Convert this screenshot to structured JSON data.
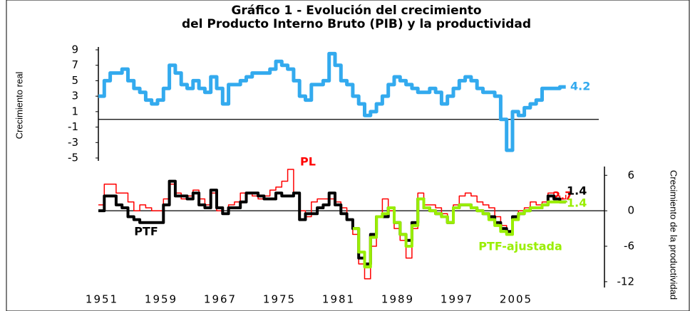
{
  "chart_data": [
    {
      "type": "line",
      "title": [
        "Gráfico 1 - Evolución del crecimiento",
        "del Producto Interno Bruto (PIB) y la productividad"
      ],
      "ylabel": "Crecimiento real",
      "ylim": [
        -5,
        9
      ],
      "yticks": [
        9,
        7,
        5,
        3,
        1,
        -1,
        -3,
        -5
      ],
      "series": [
        {
          "name": null,
          "color": "#33aaee",
          "values": [
            3,
            5,
            6,
            6,
            6.5,
            5,
            4,
            3.5,
            2.5,
            2,
            2.5,
            4,
            7,
            6,
            4.5,
            4,
            5,
            4,
            3.5,
            5.5,
            4,
            2,
            4.5,
            4.5,
            5,
            5.5,
            6,
            6,
            6,
            6.5,
            7.5,
            7,
            6.5,
            5,
            3,
            2.5,
            4.5,
            4.5,
            5,
            8.5,
            7,
            5,
            4.5,
            3,
            2,
            0.5,
            1,
            2,
            3,
            4.5,
            5.5,
            5,
            4.5,
            4,
            3.5,
            3.5,
            4,
            3.5,
            2,
            3,
            4,
            5,
            5.5,
            5,
            4,
            3.5,
            3.5,
            3,
            0,
            -4,
            1,
            0.5,
            1.5,
            2,
            2.5,
            4,
            4,
            4,
            4.2,
            4.2
          ]
        }
      ]
    },
    {
      "type": "line",
      "ylabel": "Crecimiento de la productividad",
      "ylim": [
        -12.5,
        7
      ],
      "yticks": [
        6,
        0,
        -6,
        -12
      ],
      "categories": [
        "1951",
        null,
        null,
        null,
        null,
        null,
        null,
        null,
        null,
        null,
        "1959",
        null,
        null,
        null,
        null,
        null,
        null,
        null,
        null,
        null,
        "1967",
        null,
        null,
        null,
        null,
        null,
        null,
        null,
        null,
        null,
        "1975",
        null,
        null,
        null,
        null,
        null,
        null,
        null,
        null,
        null,
        "1981",
        null,
        null,
        null,
        null,
        null,
        null,
        null,
        null,
        null,
        "1989",
        null,
        null,
        null,
        null,
        null,
        null,
        null,
        null,
        null,
        "1997",
        null,
        null,
        null,
        null,
        null,
        null,
        null,
        null,
        null,
        "2005",
        null,
        null,
        null,
        null,
        null,
        null,
        null,
        null,
        null
      ],
      "series": [
        {
          "name": "PL",
          "color": "#ff0000",
          "values": [
            1,
            4.5,
            4.5,
            3,
            3,
            1.5,
            0,
            1,
            0.5,
            0,
            0,
            2,
            4.5,
            3,
            2,
            2.5,
            3.5,
            2,
            1,
            3,
            0,
            -0.5,
            1,
            1.5,
            3,
            3,
            2.5,
            2,
            2.5,
            3.5,
            4,
            5,
            7,
            3,
            0,
            -1,
            1.5,
            2,
            2,
            2,
            1.5,
            0.5,
            -1.5,
            -4,
            -9,
            -11.5,
            -6,
            -1,
            2,
            0,
            -3,
            -5,
            -8,
            -3,
            3,
            1,
            1,
            0.5,
            -0.5,
            -2,
            1,
            2.5,
            3,
            2.5,
            1.5,
            1,
            0.5,
            -1,
            -2.5,
            -4,
            -1.5,
            0,
            0.5,
            1.5,
            1,
            1.5,
            3,
            2.5,
            2,
            2.7
          ]
        },
        {
          "name": "PTF",
          "color": "#000000",
          "values": [
            0,
            2.5,
            2.5,
            1,
            0.5,
            -1,
            -1.5,
            -2,
            -2,
            -2,
            -2,
            1,
            5,
            2.5,
            2.5,
            2,
            3,
            1,
            0.5,
            3.5,
            0.5,
            -0.5,
            0.5,
            0.5,
            1.5,
            3,
            3,
            2.5,
            2,
            2,
            3,
            2.5,
            2.5,
            3,
            -1.5,
            -0.5,
            -0.5,
            0.5,
            1,
            3,
            1,
            -0.5,
            -1.5,
            -3,
            -8,
            -9,
            -4,
            -1,
            -1,
            0.5,
            -2,
            -4,
            -5,
            -2,
            2,
            0.5,
            0,
            -0.5,
            -1,
            -2,
            0.5,
            1,
            1,
            0.5,
            0,
            -0.5,
            -1,
            -2,
            -3,
            -3.5,
            -1,
            -0.5,
            0,
            0.5,
            0.5,
            1,
            2.5,
            2,
            1.5,
            1.4
          ]
        },
        {
          "name": "PTF-ajustada",
          "color": "#99ee00",
          "values": [
            null,
            null,
            null,
            null,
            null,
            null,
            null,
            null,
            null,
            null,
            null,
            null,
            null,
            null,
            null,
            null,
            null,
            null,
            null,
            null,
            null,
            null,
            null,
            null,
            null,
            null,
            null,
            null,
            null,
            null,
            null,
            null,
            null,
            null,
            null,
            null,
            null,
            null,
            null,
            null,
            null,
            null,
            null,
            -3,
            -7,
            -9.5,
            -4.5,
            -1,
            -0.5,
            0.5,
            -2,
            -4,
            -6,
            -2.5,
            2,
            0.5,
            0,
            -0.5,
            -1,
            -2,
            0.5,
            1,
            1,
            0.5,
            0,
            -0.5,
            -1.5,
            -2.5,
            -3.5,
            -4,
            -1.5,
            -0.5,
            0,
            0.5,
            0.5,
            1,
            1.5,
            1.5,
            1.5,
            1.4
          ]
        }
      ]
    }
  ]
}
